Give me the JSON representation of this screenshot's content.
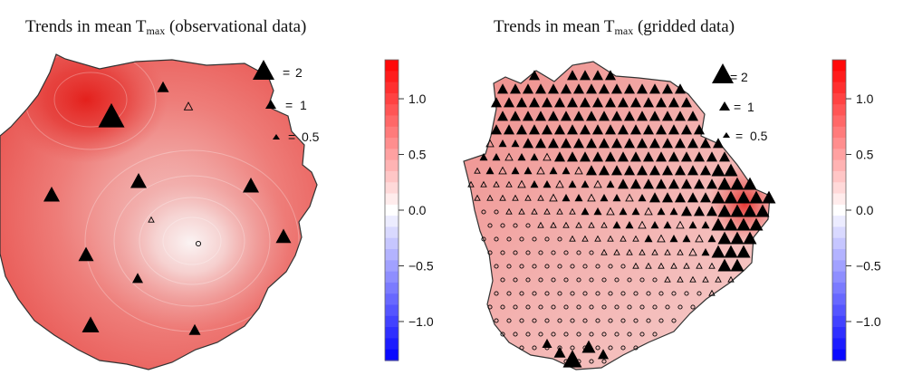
{
  "panels": [
    {
      "title_prefix": "Trends in mean T",
      "title_sub": "max",
      "title_suffix": " (observational data)"
    },
    {
      "title_prefix": "Trends in mean T",
      "title_sub": "max",
      "title_suffix": " (gridded data)"
    }
  ],
  "size_legend": [
    {
      "symbol": "=",
      "value": "2"
    },
    {
      "symbol": "=",
      "value": "1"
    },
    {
      "symbol": "=",
      "value": "0.5"
    }
  ],
  "colorbar": {
    "tick_labels": [
      "1.0",
      "0.5",
      "0.0",
      "−0.5",
      "−1.0"
    ],
    "tick_values": [
      1.0,
      0.5,
      0.0,
      -0.5,
      -1.0
    ],
    "min_value": -1.35,
    "max_value": 1.35,
    "color_high": "#ff0000",
    "color_zero": "#ffffff",
    "color_low": "#0000ff"
  }
}
